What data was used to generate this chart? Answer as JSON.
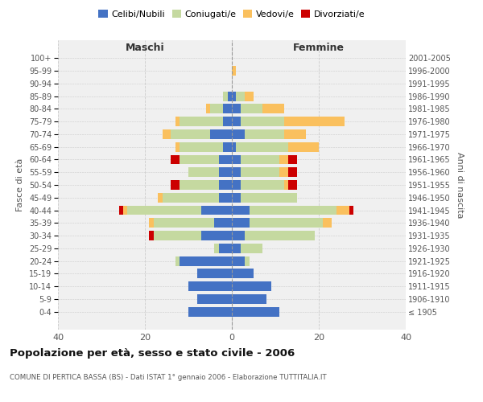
{
  "age_groups": [
    "100+",
    "95-99",
    "90-94",
    "85-89",
    "80-84",
    "75-79",
    "70-74",
    "65-69",
    "60-64",
    "55-59",
    "50-54",
    "45-49",
    "40-44",
    "35-39",
    "30-34",
    "25-29",
    "20-24",
    "15-19",
    "10-14",
    "5-9",
    "0-4"
  ],
  "birth_years": [
    "≤ 1905",
    "1906-1910",
    "1911-1915",
    "1916-1920",
    "1921-1925",
    "1926-1930",
    "1931-1935",
    "1936-1940",
    "1941-1945",
    "1946-1950",
    "1951-1955",
    "1956-1960",
    "1961-1965",
    "1966-1970",
    "1971-1975",
    "1976-1980",
    "1981-1985",
    "1986-1990",
    "1991-1995",
    "1996-2000",
    "2001-2005"
  ],
  "maschi": {
    "celibi": [
      0,
      0,
      0,
      1,
      2,
      2,
      5,
      2,
      3,
      3,
      3,
      3,
      7,
      4,
      7,
      3,
      12,
      8,
      10,
      8,
      10
    ],
    "coniugati": [
      0,
      0,
      0,
      1,
      3,
      10,
      9,
      10,
      9,
      7,
      9,
      13,
      17,
      14,
      11,
      1,
      1,
      0,
      0,
      0,
      0
    ],
    "vedovi": [
      0,
      0,
      0,
      0,
      1,
      1,
      2,
      1,
      0,
      0,
      0,
      1,
      1,
      1,
      0,
      0,
      0,
      0,
      0,
      0,
      0
    ],
    "divorziati": [
      0,
      0,
      0,
      0,
      0,
      0,
      0,
      0,
      2,
      0,
      2,
      0,
      1,
      0,
      1,
      0,
      0,
      0,
      0,
      0,
      0
    ]
  },
  "femmine": {
    "nubili": [
      0,
      0,
      0,
      1,
      2,
      2,
      3,
      1,
      2,
      2,
      2,
      2,
      4,
      4,
      3,
      2,
      3,
      5,
      9,
      8,
      11
    ],
    "coniugate": [
      0,
      0,
      0,
      2,
      5,
      10,
      9,
      12,
      9,
      9,
      10,
      13,
      20,
      17,
      16,
      5,
      1,
      0,
      0,
      0,
      0
    ],
    "vedove": [
      0,
      1,
      0,
      2,
      5,
      14,
      5,
      7,
      2,
      2,
      1,
      0,
      3,
      2,
      0,
      0,
      0,
      0,
      0,
      0,
      0
    ],
    "divorziate": [
      0,
      0,
      0,
      0,
      0,
      0,
      0,
      0,
      2,
      2,
      2,
      0,
      1,
      0,
      0,
      0,
      0,
      0,
      0,
      0,
      0
    ]
  },
  "colors": {
    "celibi": "#4472c4",
    "coniugati": "#c5d9a0",
    "vedovi": "#fac05e",
    "divorziati": "#cc0000"
  },
  "title": "Popolazione per età, sesso e stato civile - 2006",
  "subtitle": "COMUNE DI PERTICA BASSA (BS) - Dati ISTAT 1° gennaio 2006 - Elaborazione TUTTITALIA.IT",
  "xlabel_left": "Maschi",
  "xlabel_right": "Femmine",
  "ylabel_left": "Fasce di età",
  "ylabel_right": "Anni di nascita",
  "xlim": 40,
  "bg_color": "#f0f0f0",
  "legend_labels": [
    "Celibi/Nubili",
    "Coniugati/e",
    "Vedovi/e",
    "Divorziati/e"
  ]
}
